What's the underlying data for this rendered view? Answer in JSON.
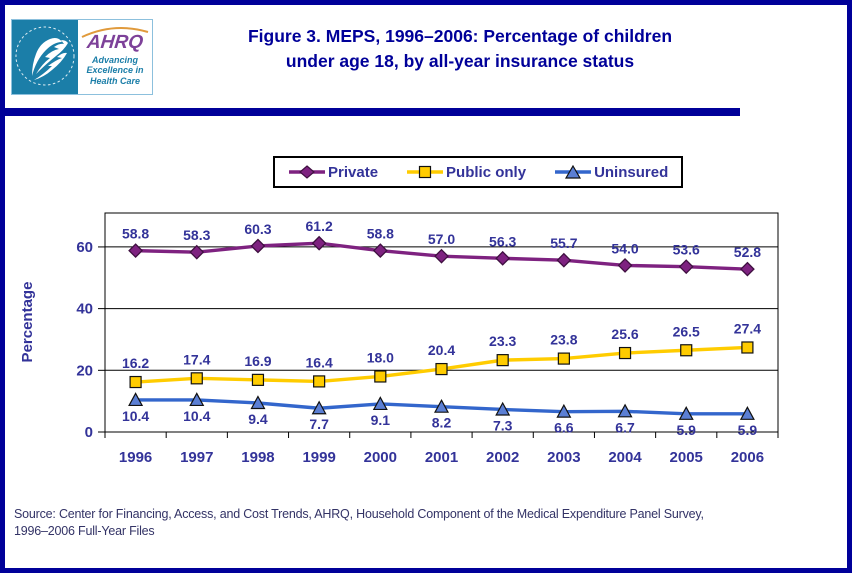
{
  "header": {
    "title_line1": "Figure 3. MEPS, 1996–2006: Percentage of children",
    "title_line2": "under age 18, by all-year insurance status",
    "logo": {
      "acronym": "AHRQ",
      "tagline_line1": "Advancing",
      "tagline_line2": "Excellence in",
      "tagline_line3": "Health Care"
    }
  },
  "chart_data": {
    "type": "line",
    "title": "Figure 3. MEPS, 1996–2006: Percentage of children under age 18, by all-year insurance status",
    "xlabel": "",
    "ylabel": "Percentage",
    "categories": [
      "1996",
      "1997",
      "1998",
      "1999",
      "2000",
      "2001",
      "2002",
      "2003",
      "2004",
      "2005",
      "2006"
    ],
    "yticks": [
      0,
      20,
      40,
      60
    ],
    "ylim": [
      0,
      71
    ],
    "grid": true,
    "legend_position": "top",
    "series": [
      {
        "name": "Private",
        "marker": "diamond",
        "color": "#7E2280",
        "label_position": "above",
        "values": [
          58.8,
          58.3,
          60.3,
          61.2,
          58.8,
          57.0,
          56.3,
          55.7,
          54.0,
          53.6,
          52.8
        ]
      },
      {
        "name": "Public only",
        "marker": "square",
        "color": "#FFCC00",
        "label_position": "above",
        "values": [
          16.2,
          17.4,
          16.9,
          16.4,
          18.0,
          20.4,
          23.3,
          23.8,
          25.6,
          26.5,
          27.4
        ]
      },
      {
        "name": "Uninsured",
        "marker": "triangle",
        "color": "#3366CC",
        "marker_fill": "#5B7FD4",
        "label_position": "below",
        "values": [
          10.4,
          10.4,
          9.4,
          7.7,
          9.1,
          8.2,
          7.3,
          6.6,
          6.7,
          5.9,
          5.9
        ]
      }
    ]
  },
  "source": {
    "line1": "Source: Center for Financing, Access, and Cost Trends, AHRQ, Household Component of the Medical Expenditure Panel Survey,",
    "line2": "1996–2006 Full-Year Files"
  },
  "colors": {
    "accent_navy": "#000099",
    "label_navy": "#333399",
    "source_navy": "#333366",
    "logo_teal": "#1B7EA8",
    "logo_purple": "#7D4199",
    "logo_arc_orange": "#E09A3C"
  }
}
